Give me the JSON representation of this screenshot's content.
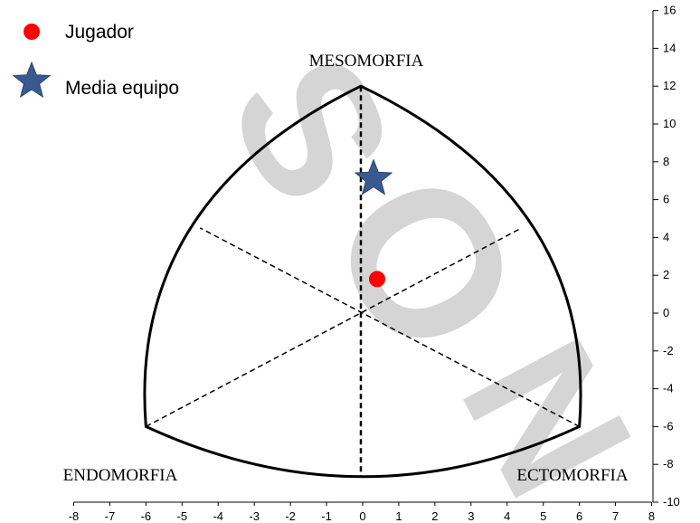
{
  "chart_data": {
    "type": "scatter",
    "subtype": "somatochart",
    "xlim": [
      -8,
      8
    ],
    "ylim": [
      -10,
      16
    ],
    "x_ticks": [
      -8,
      -7,
      -6,
      -5,
      -4,
      -3,
      -2,
      -1,
      0,
      1,
      2,
      3,
      4,
      5,
      6,
      7,
      8
    ],
    "y_ticks": [
      16,
      14,
      12,
      10,
      8,
      6,
      4,
      2,
      0,
      -2,
      -4,
      -6,
      -8,
      -10
    ],
    "y_axis_position": "right",
    "grid": false,
    "legend_position": "top-left",
    "vertex_labels": {
      "top": "MESOMORFIA",
      "left": "ENDOMORFIA",
      "right": "ECTOMORFIA"
    },
    "triangle": {
      "top": [
        0,
        12
      ],
      "left": [
        -6,
        -6
      ],
      "right": [
        6,
        -6
      ],
      "center": [
        0,
        0
      ]
    },
    "series": [
      {
        "name": "Jugador",
        "marker": "circle",
        "color": "#ff0000",
        "points": [
          {
            "x": 0.4,
            "y": 1.8
          }
        ]
      },
      {
        "name": "Media equipo",
        "marker": "star",
        "color": "#3a5a8f",
        "points": [
          {
            "x": 0.3,
            "y": 7.1
          }
        ]
      }
    ],
    "watermark": "SION"
  }
}
